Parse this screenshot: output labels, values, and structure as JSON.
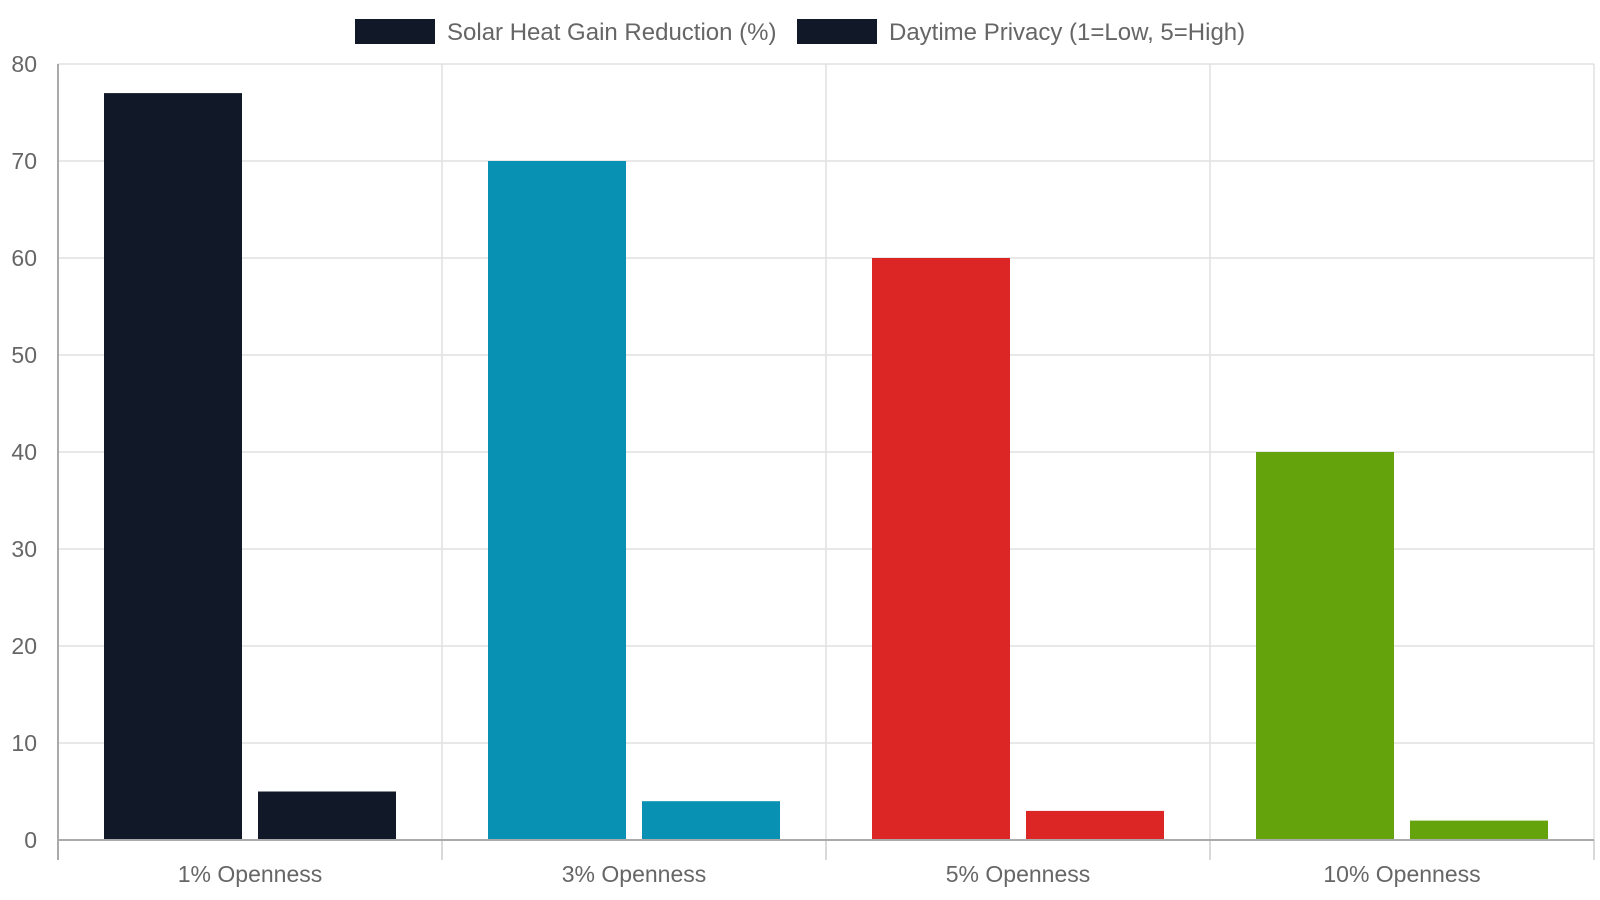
{
  "chart_data": {
    "type": "bar",
    "categories": [
      "1% Openness",
      "3% Openness",
      "5% Openness",
      "10% Openness"
    ],
    "series": [
      {
        "name": "Solar Heat Gain Reduction (%)",
        "values": [
          77,
          70,
          60,
          40
        ]
      },
      {
        "name": "Daytime Privacy (1=Low, 5=High)",
        "values": [
          5,
          4,
          3,
          2
        ]
      }
    ],
    "bar_colors": [
      "#111827",
      "#0891b2",
      "#dc2626",
      "#65a30d"
    ],
    "legend_color": "#111827",
    "ylim": [
      0,
      80
    ],
    "yticks": [
      0,
      10,
      20,
      30,
      40,
      50,
      60,
      70,
      80
    ],
    "grid": true,
    "legend_position": "top-center"
  }
}
